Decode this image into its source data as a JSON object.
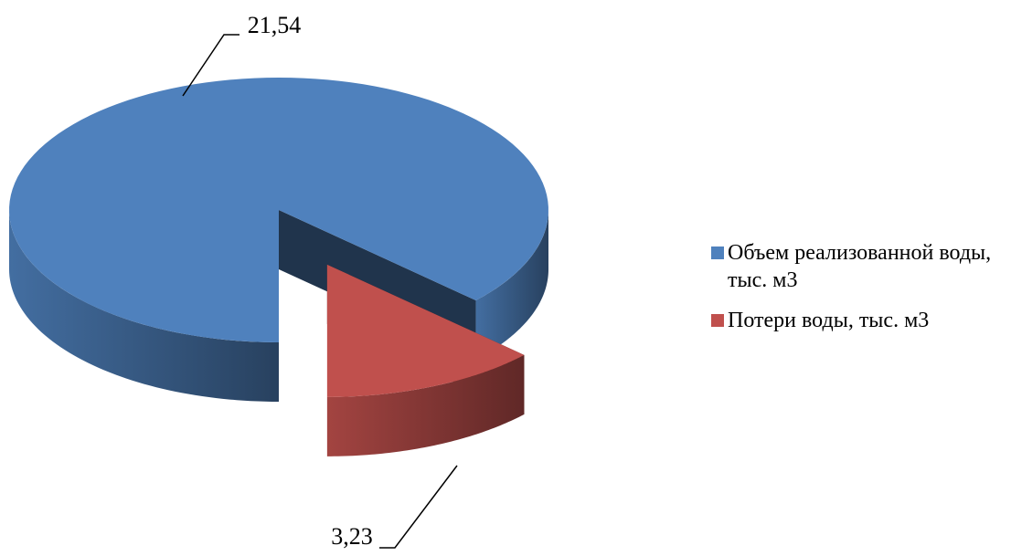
{
  "chart_data": {
    "type": "pie",
    "categories": [
      "Объем реализованной воды, тыс. м3",
      "Потери воды, тыс. м3"
    ],
    "values": [
      21.54,
      3.23
    ],
    "value_labels": [
      "21,54",
      "3,23"
    ],
    "colors": [
      "#4f81bd",
      "#c0504d"
    ],
    "legend": "right"
  }
}
